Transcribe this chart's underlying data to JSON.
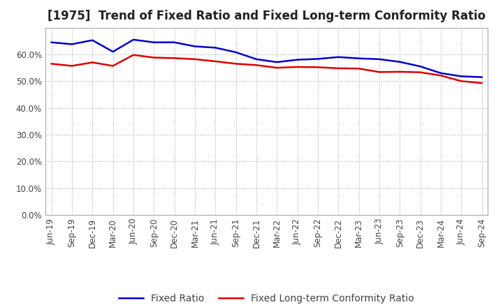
{
  "title": "[1975]  Trend of Fixed Ratio and Fixed Long-term Conformity Ratio",
  "x_labels": [
    "Jun-19",
    "Sep-19",
    "Dec-19",
    "Mar-20",
    "Jun-20",
    "Sep-20",
    "Dec-20",
    "Mar-21",
    "Jun-21",
    "Sep-21",
    "Dec-21",
    "Mar-22",
    "Jun-22",
    "Sep-22",
    "Dec-22",
    "Mar-23",
    "Jun-23",
    "Sep-23",
    "Dec-23",
    "Mar-24",
    "Jun-24",
    "Sep-24"
  ],
  "fixed_ratio": [
    0.645,
    0.638,
    0.653,
    0.61,
    0.655,
    0.645,
    0.645,
    0.63,
    0.625,
    0.608,
    0.582,
    0.571,
    0.58,
    0.583,
    0.59,
    0.585,
    0.582,
    0.572,
    0.555,
    0.53,
    0.518,
    0.515
  ],
  "fixed_lt_ratio": [
    0.565,
    0.557,
    0.57,
    0.557,
    0.598,
    0.588,
    0.586,
    0.582,
    0.574,
    0.565,
    0.56,
    0.55,
    0.553,
    0.552,
    0.548,
    0.547,
    0.534,
    0.535,
    0.533,
    0.521,
    0.5,
    0.493
  ],
  "ylim": [
    0.0,
    0.7
  ],
  "yticks": [
    0.0,
    0.1,
    0.2,
    0.3,
    0.4,
    0.5,
    0.6
  ],
  "line_color_blue": "#0000cc",
  "line_color_red": "#dd0000",
  "bg_color": "#ffffff",
  "grid_color": "#aaaaaa",
  "title_fontsize": 12,
  "legend_fontsize": 10,
  "tick_fontsize": 8.5
}
